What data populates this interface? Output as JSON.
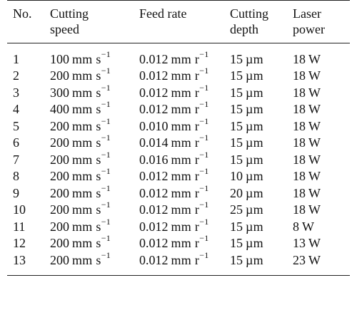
{
  "table": {
    "headers": [
      [
        "No."
      ],
      [
        "Cutting",
        "speed"
      ],
      [
        "Feed rate"
      ],
      [
        "Cutting",
        "depth"
      ],
      [
        "Laser",
        "power"
      ]
    ],
    "rows": [
      {
        "no": "1",
        "speed": "100",
        "feed": "0.012",
        "depth": "15",
        "power": "18"
      },
      {
        "no": "2",
        "speed": "200",
        "feed": "0.012",
        "depth": "15",
        "power": "18"
      },
      {
        "no": "3",
        "speed": "300",
        "feed": "0.012",
        "depth": "15",
        "power": "18"
      },
      {
        "no": "4",
        "speed": "400",
        "feed": "0.012",
        "depth": "15",
        "power": "18"
      },
      {
        "no": "5",
        "speed": "200",
        "feed": "0.010",
        "depth": "15",
        "power": "18"
      },
      {
        "no": "6",
        "speed": "200",
        "feed": "0.014",
        "depth": "15",
        "power": "18"
      },
      {
        "no": "7",
        "speed": "200",
        "feed": "0.016",
        "depth": "15",
        "power": "18"
      },
      {
        "no": "8",
        "speed": "200",
        "feed": "0.012",
        "depth": "10",
        "power": "18"
      },
      {
        "no": "9",
        "speed": "200",
        "feed": "0.012",
        "depth": "20",
        "power": "18"
      },
      {
        "no": "10",
        "speed": "200",
        "feed": "0.012",
        "depth": "25",
        "power": "18"
      },
      {
        "no": "11",
        "speed": "200",
        "feed": "0.012",
        "depth": "15",
        "power": "8"
      },
      {
        "no": "12",
        "speed": "200",
        "feed": "0.012",
        "depth": "15",
        "power": "13"
      },
      {
        "no": "13",
        "speed": "200",
        "feed": "0.012",
        "depth": "15",
        "power": "23"
      }
    ],
    "units": {
      "speed": "mm s",
      "speed_exp": "−1",
      "feed": "mm r",
      "feed_exp": "−1",
      "depth": "µm",
      "power": "W"
    }
  }
}
